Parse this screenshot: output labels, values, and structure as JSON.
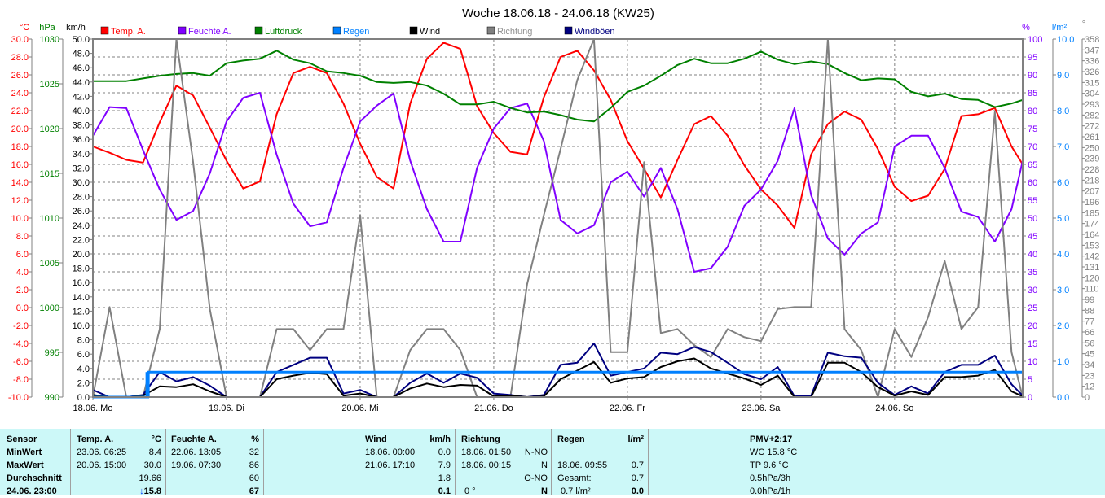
{
  "title": "Woche 18.06.18 - 24.06.18 (KW25)",
  "legend": [
    {
      "label": "Temp. A.",
      "color": "#ff0000"
    },
    {
      "label": "Feuchte A.",
      "color": "#8000ff"
    },
    {
      "label": "Luftdruck",
      "color": "#008000"
    },
    {
      "label": "Regen",
      "color": "#0080ff"
    },
    {
      "label": "Wind",
      "color": "#000000"
    },
    {
      "label": "Richtung",
      "color": "#808080"
    },
    {
      "label": "Windböen",
      "color": "#000080"
    }
  ],
  "chart_data": {
    "type": "line",
    "title": "Woche 18.06.18 - 24.06.18 (KW25)",
    "x_unit": "hours since 18.06. 00:00",
    "xlim": [
      0,
      167
    ],
    "x_day_labels": [
      "18.06. Mo",
      "19.06. Di",
      "20.06. Mi",
      "21.06. Do",
      "22.06. Fr",
      "23.06. Sa",
      "24.06. So"
    ],
    "axes": {
      "temp": {
        "unit": "°C",
        "range": [
          -10,
          30
        ],
        "labels": [
          "30.0",
          "28.0",
          "26.0",
          "24.0",
          "22.0",
          "20.0",
          "18.0",
          "16.0",
          "14.0",
          "12.0",
          "10.0",
          "8.0",
          "6.0",
          "4.0",
          "2.0",
          "0.0",
          "-2.0",
          "-4.0",
          "-6.0",
          "-8.0",
          "-10.0"
        ],
        "color": "#ff0000"
      },
      "pressure": {
        "unit": "hPa",
        "range": [
          990,
          1030
        ],
        "labels": [
          "1030",
          "1025",
          "1020",
          "1015",
          "1010",
          "1005",
          "1000",
          "995",
          "990"
        ],
        "color": "#008000"
      },
      "wind": {
        "unit": "km/h",
        "range": [
          0,
          50
        ],
        "labels": [
          "50.0",
          "48.0",
          "46.0",
          "44.0",
          "42.0",
          "40.0",
          "38.0",
          "36.0",
          "34.0",
          "32.0",
          "30.0",
          "28.0",
          "26.0",
          "24.0",
          "22.0",
          "20.0",
          "18.0",
          "16.0",
          "14.0",
          "12.0",
          "10.0",
          "8.0",
          "6.0",
          "4.0",
          "2.0",
          "0.0"
        ],
        "color": "#000000"
      },
      "humidity": {
        "unit": "%",
        "range": [
          0,
          100
        ],
        "labels": [
          "100",
          "95",
          "90",
          "85",
          "80",
          "75",
          "70",
          "65",
          "60",
          "55",
          "50",
          "45",
          "40",
          "35",
          "30",
          "25",
          "20",
          "15",
          "10",
          "5",
          "0"
        ],
        "color": "#8000ff"
      },
      "rain": {
        "unit": "l/m²",
        "range": [
          0,
          10
        ],
        "labels": [
          "10.0",
          "9.0",
          "8.0",
          "7.0",
          "6.0",
          "5.0",
          "4.0",
          "3.0",
          "2.0",
          "1.0",
          "0.0"
        ],
        "color": "#0080ff"
      },
      "direction": {
        "unit": "°",
        "range": [
          0,
          358
        ],
        "labels": [
          "358",
          "347",
          "336",
          "326",
          "315",
          "304",
          "293",
          "282",
          "272",
          "261",
          "250",
          "239",
          "228",
          "218",
          "207",
          "196",
          "185",
          "174",
          "164",
          "153",
          "142",
          "131",
          "120",
          "110",
          "99",
          "88",
          "77",
          "66",
          "56",
          "45",
          "34",
          "23",
          "12",
          "0"
        ],
        "color": "#808080"
      }
    },
    "x": [
      0,
      3,
      6,
      9,
      12,
      15,
      18,
      21,
      24,
      27,
      30,
      33,
      36,
      39,
      42,
      45,
      48,
      51,
      54,
      57,
      60,
      63,
      66,
      69,
      72,
      75,
      78,
      81,
      84,
      87,
      90,
      93,
      96,
      99,
      102,
      105,
      108,
      111,
      114,
      117,
      120,
      123,
      126,
      129,
      132,
      135,
      138,
      141,
      144,
      147,
      150,
      153,
      156,
      159,
      162,
      165,
      167
    ],
    "series": [
      {
        "name": "Temp. A.",
        "axis": "temp",
        "color": "#ff0000",
        "values": [
          18.0,
          17.3,
          16.5,
          16.2,
          20.7,
          24.8,
          23.7,
          20.1,
          16.4,
          13.3,
          14.1,
          21.6,
          26.2,
          26.9,
          26.2,
          22.8,
          18.3,
          14.6,
          13.3,
          22.8,
          27.8,
          29.6,
          28.9,
          22.5,
          19.5,
          17.4,
          17.1,
          23.5,
          28.0,
          28.7,
          26.5,
          23.2,
          18.6,
          15.5,
          12.3,
          16.5,
          20.5,
          21.4,
          19.2,
          15.9,
          13.2,
          11.4,
          8.9,
          17.1,
          20.5,
          21.9,
          21.0,
          17.7,
          13.5,
          11.9,
          12.5,
          15.5,
          21.4,
          21.6,
          22.3,
          18.0,
          16.0
        ]
      },
      {
        "name": "Feuchte A.",
        "axis": "humidity",
        "color": "#8000ff",
        "values": [
          73,
          81,
          80.7,
          69,
          58,
          49.5,
          52,
          62.5,
          77,
          83.6,
          85,
          67.7,
          54,
          47.7,
          48.8,
          64,
          77,
          81.4,
          84.8,
          66,
          52.5,
          43.4,
          43.4,
          64,
          75,
          80.7,
          82,
          71.5,
          49.5,
          45.7,
          48,
          60,
          63,
          56,
          64,
          52.5,
          35,
          36,
          42,
          53.4,
          58,
          66,
          80.7,
          56.4,
          44.3,
          39.8,
          45.7,
          48.8,
          70,
          73,
          73,
          64,
          51.8,
          50.3,
          43.4,
          52.5,
          66
        ]
      },
      {
        "name": "Luftdruck",
        "axis": "pressure",
        "color": "#008000",
        "values": [
          1025.3,
          1025.3,
          1025.3,
          1025.6,
          1025.9,
          1026.1,
          1026.2,
          1025.9,
          1027.3,
          1027.6,
          1027.8,
          1028.7,
          1027.7,
          1027.3,
          1026.4,
          1026.2,
          1025.9,
          1025.2,
          1025.1,
          1025.2,
          1024.8,
          1023.9,
          1022.7,
          1022.7,
          1023.0,
          1022.3,
          1021.8,
          1021.9,
          1021.5,
          1021.0,
          1020.8,
          1022.3,
          1024.1,
          1024.8,
          1025.9,
          1027.1,
          1027.8,
          1027.3,
          1027.3,
          1027.8,
          1028.6,
          1027.7,
          1027.2,
          1027.5,
          1027.2,
          1026.2,
          1025.4,
          1025.6,
          1025.5,
          1024.1,
          1023.6,
          1023.9,
          1023.3,
          1023.2,
          1022.4,
          1022.8,
          1023.2
        ]
      },
      {
        "name": "Richtung",
        "axis": "direction",
        "color": "#808080",
        "values": [
          0,
          90,
          0,
          0,
          68,
          358,
          235,
          88,
          0,
          0,
          0,
          68,
          68,
          47,
          68,
          68,
          182,
          0,
          0,
          47,
          68,
          68,
          47,
          0,
          0,
          0,
          113,
          182,
          248,
          317,
          358,
          45,
          45,
          235,
          64,
          68,
          52,
          40,
          68,
          60,
          56,
          88,
          90,
          90,
          358,
          68,
          47,
          0,
          68,
          40,
          80,
          136,
          68,
          90,
          285,
          45,
          0
        ]
      },
      {
        "name": "Windböen",
        "axis": "wind",
        "color": "#000080",
        "values": [
          1,
          0,
          0,
          0.3,
          3.5,
          2.2,
          2.8,
          1.6,
          0,
          0,
          0,
          3.5,
          4.5,
          5.5,
          5.5,
          0.5,
          1.0,
          0,
          0,
          2.0,
          3.3,
          2.0,
          3.3,
          2.7,
          0.5,
          0.3,
          0,
          0.3,
          4.5,
          4.8,
          7.5,
          3.0,
          3.5,
          4.0,
          6.2,
          6.0,
          7.0,
          6.3,
          4.8,
          3.2,
          2.5,
          4.2,
          0.1,
          0.2,
          6.2,
          5.7,
          5.5,
          2.0,
          0.3,
          1.5,
          0.5,
          3.5,
          4.5,
          4.5,
          5.8,
          1.8,
          0.2
        ]
      },
      {
        "name": "Wind",
        "axis": "wind",
        "color": "#000000",
        "values": [
          0.3,
          0,
          0,
          0.2,
          1.5,
          1.4,
          1.8,
          0.8,
          0,
          0,
          0,
          2.5,
          3.0,
          3.4,
          3.2,
          0.2,
          0.5,
          0,
          0,
          1.2,
          1.9,
          1.4,
          1.7,
          1.6,
          0.1,
          0.2,
          0,
          0.1,
          2.5,
          3.7,
          4.9,
          2.0,
          2.6,
          2.8,
          4.2,
          5.0,
          5.4,
          4.0,
          3.3,
          2.6,
          1.7,
          3.0,
          0,
          0,
          4.8,
          4.8,
          3.5,
          1.4,
          0.2,
          0.8,
          0.3,
          2.8,
          2.8,
          3.0,
          3.8,
          0.8,
          0.1
        ]
      }
    ],
    "rain": {
      "name": "Regen",
      "axis": "rain",
      "color": "#0080ff",
      "event_hour": 9.9,
      "event_amount": 0.7,
      "cumulative": [
        [
          0,
          0
        ],
        [
          9.9,
          0
        ],
        [
          9.9,
          0.7
        ],
        [
          167,
          0.7
        ]
      ]
    },
    "grid": true
  },
  "table": {
    "rows": [
      "Sensor",
      "MinWert",
      "MaxWert",
      "Durchschnitt",
      "24.06. 23:00"
    ],
    "temp": {
      "header": "Temp. A.",
      "unit": "°C",
      "min_time": "23.06.  06:25",
      "min": "8.4",
      "max_time": "20.06.  15:00",
      "max": "30.0",
      "avg": "19.66",
      "current_trend": "↓",
      "current": "15.8"
    },
    "humidity": {
      "header": "Feuchte A.",
      "unit": "%",
      "min_time": "22.06.  13:05",
      "min": "32",
      "max_time": "19.06.  07:30",
      "max": "86",
      "avg": "60",
      "current": "67"
    },
    "wind": {
      "header": "Wind",
      "unit": "km/h",
      "min_time": "18.06.  00:00",
      "min": "0.0",
      "max_time": "21.06.  17:10",
      "max": "7.9",
      "avg": "1.8",
      "current": "0.1"
    },
    "direction": {
      "header": "Richtung",
      "min_time": "18.06.  01:50",
      "min": "N-NO",
      "max_time": "18.06.  00:15",
      "max": "N",
      "avg": "O-NO",
      "current_deg": "0 °",
      "current": "N"
    },
    "rain": {
      "header": "Regen",
      "unit": "l/m²",
      "max_time": "18.06.  09:55",
      "max": "0.7",
      "total_label": "Gesamt:",
      "total": "0.7",
      "current_total": "0.7 l/m²",
      "current": "0.0"
    },
    "extra": {
      "pmv": "PMV+2:17",
      "wc": "WC 15.8 °C",
      "tp": "TP 9.6 °C",
      "p3h": "0.5hPa/3h",
      "p1h": "0.0hPa/1h"
    }
  }
}
